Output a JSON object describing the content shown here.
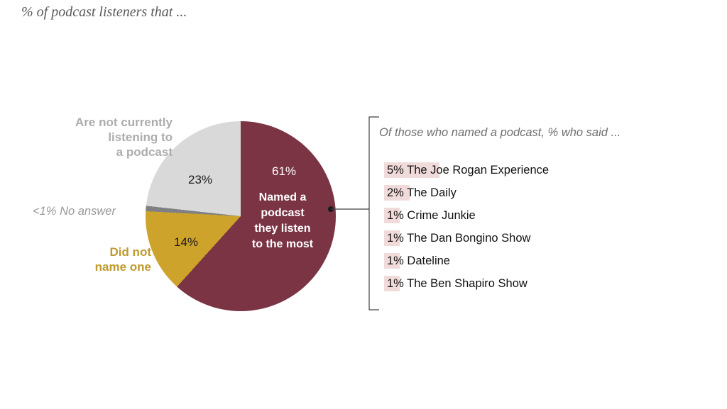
{
  "title": "% of podcast listeners that ...",
  "chart_data": {
    "type": "pie",
    "title": "% of podcast listeners that ...",
    "direction": "clockwise",
    "start_angle_deg": 0,
    "legend_position": "none",
    "slices": [
      {
        "label": "Named a podcast they listen to the most",
        "value": 61,
        "display_value": "61%",
        "color": "#7a3444"
      },
      {
        "label": "Did not name one",
        "value": 14,
        "display_value": "14%",
        "color": "#cda32c"
      },
      {
        "label": "No answer",
        "value": 0.9,
        "display_value": "<1%",
        "color": "#7f8083"
      },
      {
        "label": "Are not currently listening to a podcast",
        "value": 23,
        "display_value": "23%",
        "color": "#d9d9d9"
      }
    ],
    "callout": {
      "heading": "Of those who named a podcast, % who said ...",
      "items": [
        {
          "value": 5,
          "display_value": "5%",
          "name": "The Joe Rogan Experience"
        },
        {
          "value": 2,
          "display_value": "2%",
          "name": "The Daily"
        },
        {
          "value": 1,
          "display_value": "1%",
          "name": "Crime Junkie"
        },
        {
          "value": 1,
          "display_value": "1%",
          "name": "The Dan Bongino Show"
        },
        {
          "value": 1,
          "display_value": "1%",
          "name": "Dateline"
        },
        {
          "value": 1,
          "display_value": "1%",
          "name": "The Ben Shapiro Show"
        }
      ]
    }
  },
  "pie_display": {
    "named_pct": "61%",
    "named_label_multiline": "Named a\npodcast\nthey listen\nto the most",
    "not_listening_pct": "23%",
    "not_listening_multiline": "Are not currently\nlistening to\na podcast",
    "no_answer_text": "<1% No answer",
    "did_not_name_pct": "14%",
    "did_not_name_multiline": "Did not\nname one"
  },
  "colors": {
    "maroon": "#7a3444",
    "gold_slice": "#cda32c",
    "gold_text": "#bf9a2c",
    "light_gray_slice": "#d9d9d9",
    "no_answer_sliver": "#7f8083",
    "muted_label_gray": "#acacac",
    "highlight_pink": "#f0dbda",
    "bracket_line": "#404040"
  }
}
